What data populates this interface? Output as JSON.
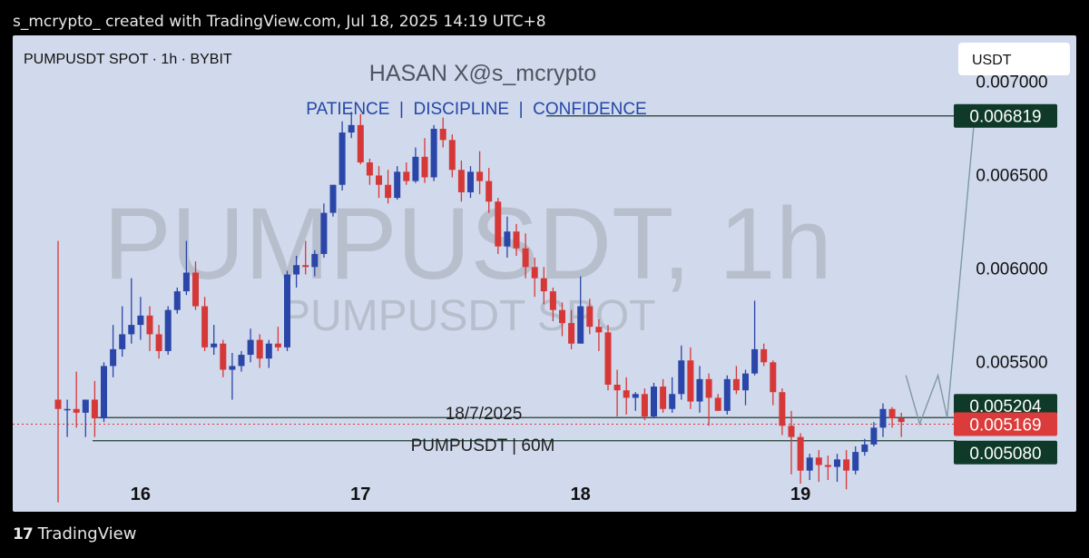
{
  "header": {
    "text": "s_mcrypto_ created with TradingView.com, Jul 18, 2025 14:19 UTC+8"
  },
  "footer": {
    "logo_glyph": "17",
    "brand": "TradingView"
  },
  "currency_box": {
    "label": "USDT"
  },
  "chart_data": {
    "type": "candlestick",
    "symbol_label": "PUMPUSDT SPOT · 1h · BYBIT",
    "title": "HASAN X@s_mcrypto",
    "subtitle": "PATIENCE  |  DISCIPLINE  |  CONFIDENCE",
    "watermark_main": "PUMPUSDT, 1h",
    "watermark_sub": "PUMPUSDT SPOT",
    "annotation_date": "18/7/2025",
    "annotation_pair": "PUMPUSDT | 60M",
    "x_ticks": [
      {
        "label": "16",
        "t": 9
      },
      {
        "label": "17",
        "t": 33
      },
      {
        "label": "18",
        "t": 57
      },
      {
        "label": "19",
        "t": 81
      }
    ],
    "y_ticks": [
      0.0055,
      0.006,
      0.0065,
      0.007
    ],
    "y_range": [
      0.0047,
      0.00725
    ],
    "levels": [
      {
        "label": "0.006819",
        "value": 0.006819,
        "color": "#0f3a2a"
      },
      {
        "label": "0.005204",
        "value": 0.005204,
        "color": "#0f3a2a"
      },
      {
        "label": "0.005169",
        "value": 0.005169,
        "color": "#dc3b3b"
      },
      {
        "label": "0.005080",
        "value": 0.00508,
        "color": "#0f3a2a"
      }
    ],
    "colors": {
      "up": "#2a46a8",
      "down": "#d63838",
      "level_line": "#1c3f30",
      "projection": "#7d9aa3"
    },
    "candles": [
      [
        0.0053,
        0.00615,
        0.00475,
        0.00525
      ],
      [
        0.00525,
        0.0053,
        0.0051,
        0.00525
      ],
      [
        0.00525,
        0.00545,
        0.00515,
        0.00523
      ],
      [
        0.00523,
        0.0053,
        0.0051,
        0.0053
      ],
      [
        0.0053,
        0.0054,
        0.0051,
        0.0052
      ],
      [
        0.0052,
        0.0055,
        0.00518,
        0.00548
      ],
      [
        0.00548,
        0.0057,
        0.00542,
        0.00557
      ],
      [
        0.00557,
        0.0058,
        0.00553,
        0.00565
      ],
      [
        0.00565,
        0.00595,
        0.0056,
        0.0057
      ],
      [
        0.0057,
        0.00585,
        0.00562,
        0.00575
      ],
      [
        0.00575,
        0.0058,
        0.00556,
        0.00565
      ],
      [
        0.00565,
        0.0057,
        0.00552,
        0.00556
      ],
      [
        0.00556,
        0.0058,
        0.00554,
        0.00578
      ],
      [
        0.00578,
        0.0059,
        0.00576,
        0.00588
      ],
      [
        0.00588,
        0.00615,
        0.00586,
        0.00598
      ],
      [
        0.00598,
        0.00604,
        0.00578,
        0.0058
      ],
      [
        0.0058,
        0.00585,
        0.00556,
        0.00558
      ],
      [
        0.00558,
        0.0057,
        0.00554,
        0.0056
      ],
      [
        0.0056,
        0.00562,
        0.00542,
        0.00546
      ],
      [
        0.00546,
        0.00555,
        0.0053,
        0.00548
      ],
      [
        0.00548,
        0.00556,
        0.00545,
        0.00554
      ],
      [
        0.00554,
        0.00568,
        0.0055,
        0.00562
      ],
      [
        0.00562,
        0.00565,
        0.00547,
        0.00552
      ],
      [
        0.00552,
        0.00562,
        0.00547,
        0.0056
      ],
      [
        0.0056,
        0.00569,
        0.00556,
        0.00558
      ],
      [
        0.00558,
        0.00599,
        0.00556,
        0.00597
      ],
      [
        0.00597,
        0.00607,
        0.0059,
        0.00602
      ],
      [
        0.00602,
        0.00615,
        0.00597,
        0.00601
      ],
      [
        0.00601,
        0.0061,
        0.00596,
        0.00608
      ],
      [
        0.00608,
        0.00635,
        0.00606,
        0.0063
      ],
      [
        0.0063,
        0.00645,
        0.00628,
        0.00645
      ],
      [
        0.00645,
        0.00679,
        0.00642,
        0.00673
      ],
      [
        0.00673,
        0.00684,
        0.0067,
        0.00677
      ],
      [
        0.00677,
        0.00683,
        0.00656,
        0.00657
      ],
      [
        0.00657,
        0.00659,
        0.00645,
        0.0065
      ],
      [
        0.0065,
        0.00655,
        0.00638,
        0.00645
      ],
      [
        0.00645,
        0.00653,
        0.00635,
        0.00638
      ],
      [
        0.00638,
        0.00655,
        0.00637,
        0.00652
      ],
      [
        0.00652,
        0.00657,
        0.00645,
        0.00647
      ],
      [
        0.00647,
        0.00665,
        0.00646,
        0.0066
      ],
      [
        0.0066,
        0.0067,
        0.00646,
        0.00649
      ],
      [
        0.00649,
        0.00677,
        0.00647,
        0.00675
      ],
      [
        0.00675,
        0.00681,
        0.00665,
        0.00669
      ],
      [
        0.00669,
        0.00672,
        0.00649,
        0.00653
      ],
      [
        0.00653,
        0.00658,
        0.00636,
        0.00641
      ],
      [
        0.00641,
        0.00655,
        0.00638,
        0.00652
      ],
      [
        0.00652,
        0.00663,
        0.0064,
        0.00647
      ],
      [
        0.00647,
        0.00654,
        0.0063,
        0.00636
      ],
      [
        0.00636,
        0.00638,
        0.00608,
        0.00612
      ],
      [
        0.00612,
        0.00628,
        0.00606,
        0.0062
      ],
      [
        0.0062,
        0.00624,
        0.00607,
        0.00611
      ],
      [
        0.00611,
        0.00619,
        0.00595,
        0.00601
      ],
      [
        0.00601,
        0.00606,
        0.00585,
        0.00595
      ],
      [
        0.00595,
        0.00601,
        0.00581,
        0.00588
      ],
      [
        0.00588,
        0.0059,
        0.00572,
        0.00578
      ],
      [
        0.00578,
        0.00582,
        0.00564,
        0.00571
      ],
      [
        0.00571,
        0.00578,
        0.00557,
        0.0056
      ],
      [
        0.0056,
        0.00596,
        0.0056,
        0.0058
      ],
      [
        0.0058,
        0.00584,
        0.00565,
        0.00569
      ],
      [
        0.00569,
        0.00573,
        0.00556,
        0.00566
      ],
      [
        0.00566,
        0.0057,
        0.00535,
        0.00538
      ],
      [
        0.00538,
        0.00546,
        0.00521,
        0.00535
      ],
      [
        0.00535,
        0.00542,
        0.00522,
        0.00531
      ],
      [
        0.00531,
        0.00534,
        0.00524,
        0.00533
      ],
      [
        0.00533,
        0.00536,
        0.00519,
        0.00521
      ],
      [
        0.00521,
        0.00539,
        0.0052,
        0.00537
      ],
      [
        0.00537,
        0.00541,
        0.00523,
        0.00525
      ],
      [
        0.00525,
        0.00542,
        0.00523,
        0.00533
      ],
      [
        0.00533,
        0.00559,
        0.0053,
        0.00551
      ],
      [
        0.00551,
        0.00558,
        0.00525,
        0.00529
      ],
      [
        0.00529,
        0.00548,
        0.00523,
        0.00541
      ],
      [
        0.00541,
        0.00544,
        0.00516,
        0.00531
      ],
      [
        0.00531,
        0.00533,
        0.00524,
        0.00524
      ],
      [
        0.00524,
        0.00543,
        0.00522,
        0.00541
      ],
      [
        0.00541,
        0.00548,
        0.00533,
        0.00535
      ],
      [
        0.00535,
        0.00546,
        0.00527,
        0.00544
      ],
      [
        0.00544,
        0.00583,
        0.00543,
        0.00557
      ],
      [
        0.00557,
        0.0056,
        0.00548,
        0.0055
      ],
      [
        0.0055,
        0.00551,
        0.00527,
        0.00534
      ],
      [
        0.00534,
        0.00536,
        0.00511,
        0.00516
      ],
      [
        0.00516,
        0.00524,
        0.0049,
        0.0051
      ],
      [
        0.0051,
        0.00512,
        0.00485,
        0.00492
      ],
      [
        0.00492,
        0.00501,
        0.00487,
        0.00499
      ],
      [
        0.00499,
        0.00503,
        0.00486,
        0.00495
      ],
      [
        0.00495,
        0.005,
        0.00487,
        0.00494
      ],
      [
        0.00494,
        0.00501,
        0.00486,
        0.00498
      ],
      [
        0.00498,
        0.00503,
        0.00482,
        0.00492
      ],
      [
        0.00492,
        0.00505,
        0.0049,
        0.00502
      ],
      [
        0.00502,
        0.00509,
        0.005,
        0.00506
      ],
      [
        0.00506,
        0.00518,
        0.00505,
        0.00515
      ],
      [
        0.00515,
        0.00528,
        0.0051,
        0.00525
      ],
      [
        0.00525,
        0.00526,
        0.00515,
        0.0052
      ],
      [
        0.0052,
        0.00523,
        0.0051,
        0.00518
      ]
    ],
    "projection_path": [
      [
        92.5,
        0.00543
      ],
      [
        94.0,
        0.00517
      ],
      [
        96.0,
        0.00543
      ],
      [
        97.0,
        0.005204
      ],
      [
        100.0,
        0.006819
      ]
    ]
  }
}
